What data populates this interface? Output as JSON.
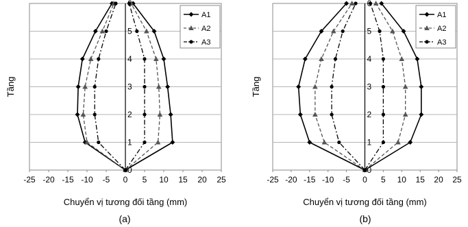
{
  "chart_data": [
    {
      "type": "line",
      "caption": "(a)",
      "xlabel": "Chuyển vị tương đối tầng (mm)",
      "ylabel": "Tầng",
      "xlim": [
        -25,
        25
      ],
      "ylim": [
        0,
        6
      ],
      "xticks": [
        "-25",
        "-20",
        "-15",
        "-10",
        "-5",
        "0",
        "5",
        "10",
        "15",
        "20",
        "25"
      ],
      "yticks": [
        "0",
        "1",
        "2",
        "3",
        "4",
        "5",
        "6"
      ],
      "grid": "horizontal",
      "legend_position": "top-right",
      "colors": {
        "A1": "#000000",
        "A2": "#555555",
        "A3": "#000000"
      },
      "series": [
        {
          "name": "A1",
          "marker": "diamond",
          "line": "solid",
          "y": [
            0,
            1,
            2,
            3,
            4,
            5,
            6
          ],
          "left": [
            0,
            -10.5,
            -12.5,
            -12.3,
            -11.2,
            -7.8,
            -3.5
          ],
          "right": [
            0,
            12.3,
            11.8,
            11.0,
            10.0,
            7.5,
            2.0
          ]
        },
        {
          "name": "A2",
          "marker": "triangle",
          "line": "dashed",
          "y": [
            0,
            1,
            2,
            3,
            4,
            5,
            6
          ],
          "left": [
            0,
            -10.0,
            -11.0,
            -10.5,
            -9.0,
            -6.0,
            -3.0
          ],
          "right": [
            0,
            8.5,
            9.0,
            8.7,
            8.0,
            5.5,
            1.5
          ]
        },
        {
          "name": "A3",
          "marker": "circle",
          "line": "dashdot",
          "y": [
            0,
            1,
            2,
            3,
            4,
            5,
            6
          ],
          "left": [
            0,
            -7.0,
            -8.0,
            -8.0,
            -7.0,
            -5.0,
            -2.5
          ],
          "right": [
            0,
            5.0,
            5.0,
            5.0,
            5.0,
            3.0,
            1.0
          ]
        }
      ]
    },
    {
      "type": "line",
      "caption": "(b)",
      "xlabel": "Chuyển vị tương đối tầng (mm)",
      "ylabel": "Tầng",
      "xlim": [
        -25,
        25
      ],
      "ylim": [
        0,
        6
      ],
      "xticks": [
        "-25",
        "-20",
        "-15",
        "-10",
        "-5",
        "0",
        "5",
        "10",
        "15",
        "20",
        "25"
      ],
      "yticks": [
        "0",
        "1",
        "2",
        "3",
        "4",
        "5",
        "6"
      ],
      "grid": "horizontal",
      "legend_position": "top-right",
      "colors": {
        "A1": "#000000",
        "A2": "#555555",
        "A3": "#000000"
      },
      "series": [
        {
          "name": "A1",
          "marker": "diamond",
          "line": "solid",
          "y": [
            0,
            1,
            2,
            3,
            4,
            5,
            6
          ],
          "left": [
            0,
            -15.0,
            -17.5,
            -18.0,
            -16.2,
            -11.8,
            -5.0
          ],
          "right": [
            0,
            12.3,
            15.3,
            15.3,
            14.2,
            10.5,
            4.5
          ]
        },
        {
          "name": "A2",
          "marker": "triangle",
          "line": "dashed",
          "y": [
            0,
            1,
            2,
            3,
            4,
            5,
            6
          ],
          "left": [
            0,
            -11.0,
            -13.5,
            -13.5,
            -11.8,
            -8.5,
            -3.5
          ],
          "right": [
            0,
            9.0,
            11.0,
            11.0,
            10.0,
            7.5,
            3.0
          ]
        },
        {
          "name": "A3",
          "marker": "circle",
          "line": "dashdot",
          "y": [
            0,
            1,
            2,
            3,
            4,
            5,
            6
          ],
          "left": [
            0,
            -7.0,
            -9.0,
            -9.0,
            -8.0,
            -6.0,
            -2.5
          ],
          "right": [
            0,
            5.0,
            5.0,
            5.0,
            5.0,
            4.0,
            1.5
          ]
        }
      ]
    }
  ]
}
